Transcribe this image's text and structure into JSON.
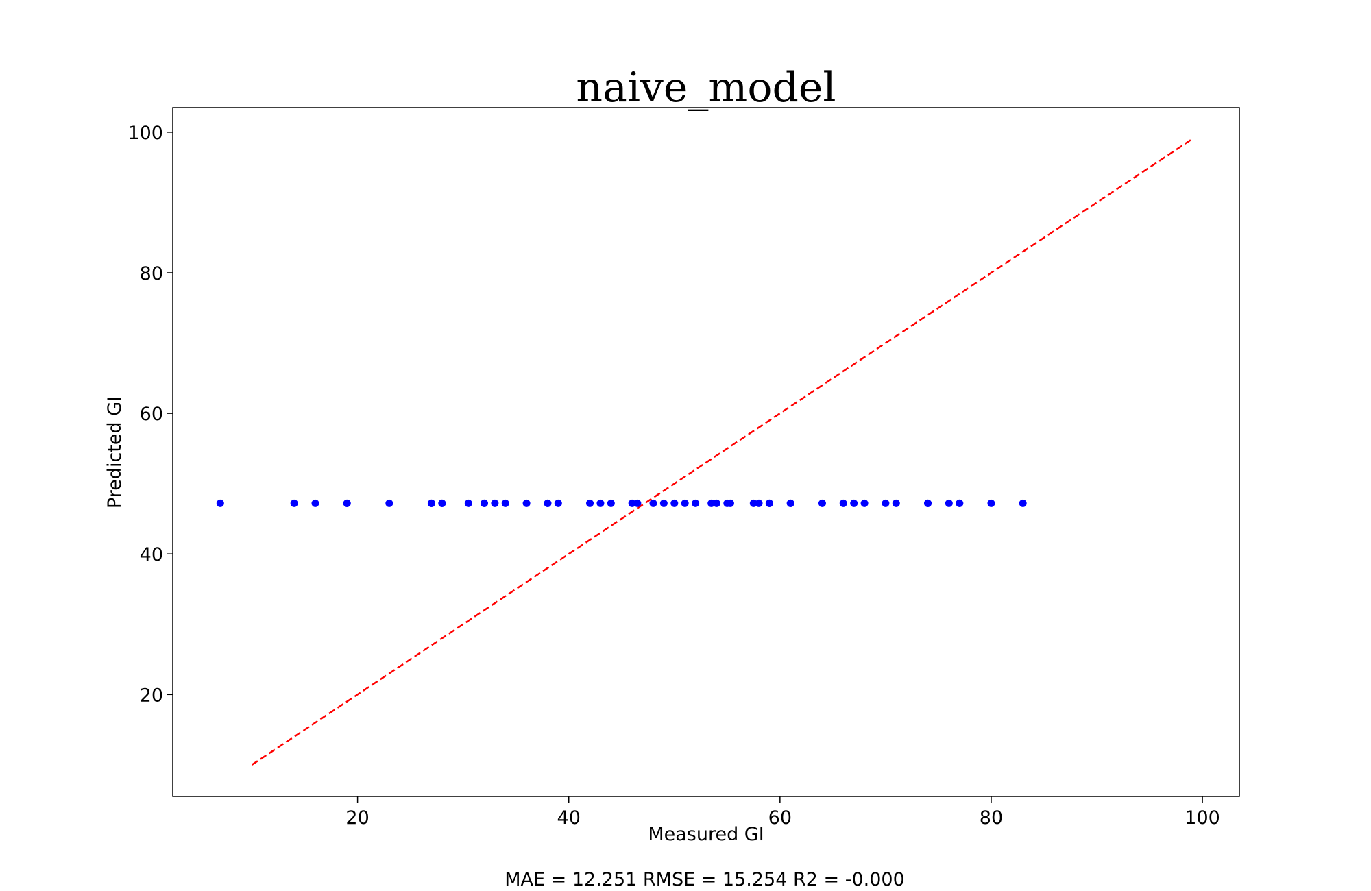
{
  "chart_data": {
    "type": "scatter",
    "title": "naive_model",
    "xlabel": "Measured GI",
    "ylabel": "Predicted GI",
    "metrics_text": "MAE = 12.251 RMSE = 15.254 R2 = -0.000",
    "xlim": [
      2.5,
      103.5
    ],
    "ylim": [
      5.5,
      103.5
    ],
    "x_ticks": [
      20,
      40,
      60,
      80,
      100
    ],
    "y_ticks": [
      20,
      40,
      60,
      80,
      100
    ],
    "grid": false,
    "colors": {
      "points": "#0000ff",
      "reference_line": "#ff0000",
      "axes": "#000000"
    },
    "reference_line": {
      "style": "dashed",
      "x": [
        10,
        99
      ],
      "y": [
        10,
        99
      ]
    },
    "series": [
      {
        "x": [
          7,
          14,
          16,
          19,
          19,
          23,
          27,
          27,
          28,
          28,
          30.5,
          32,
          32,
          33,
          34,
          36,
          38,
          38,
          39,
          42,
          43,
          44,
          46,
          46.5,
          48,
          49,
          50,
          51,
          52,
          53.5,
          54,
          55,
          55.3,
          57.5,
          58,
          59,
          59,
          61,
          61,
          64,
          66,
          67,
          68,
          70,
          71,
          74,
          74,
          76,
          77,
          77,
          80,
          83
        ],
        "y": [
          47.2,
          47.2,
          47.2,
          47.2,
          47.2,
          47.2,
          47.2,
          47.2,
          47.2,
          47.2,
          47.2,
          47.2,
          47.2,
          47.2,
          47.2,
          47.2,
          47.2,
          47.2,
          47.2,
          47.2,
          47.2,
          47.2,
          47.2,
          47.2,
          47.2,
          47.2,
          47.2,
          47.2,
          47.2,
          47.2,
          47.2,
          47.2,
          47.2,
          47.2,
          47.2,
          47.2,
          47.2,
          47.2,
          47.2,
          47.2,
          47.2,
          47.2,
          47.2,
          47.2,
          47.2,
          47.2,
          47.2,
          47.2,
          47.2,
          47.2,
          47.2,
          47.2
        ]
      }
    ]
  }
}
